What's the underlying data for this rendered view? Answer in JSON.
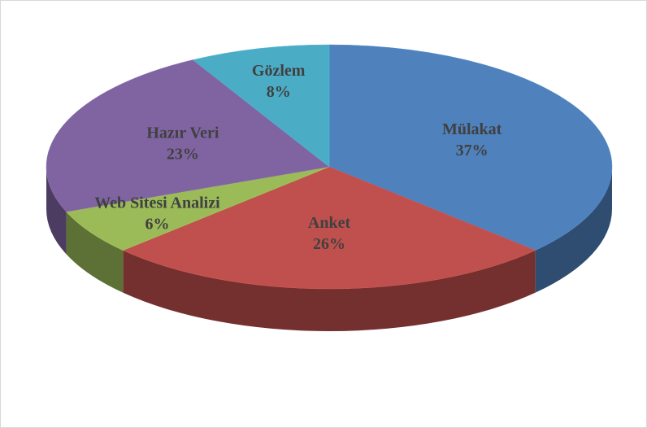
{
  "chart_data": {
    "type": "pie",
    "categories": [
      "Mülakat",
      "Anket",
      "Web Sitesi Analizi",
      "Hazır Veri",
      "Gözlem"
    ],
    "values": [
      37,
      26,
      6,
      23,
      8
    ],
    "value_labels": [
      "37%",
      "26%",
      "6%",
      "23%",
      "8%"
    ],
    "colors": [
      "#4f81bd",
      "#c0504d",
      "#9bbb59",
      "#8064a2",
      "#4bacc6"
    ]
  }
}
